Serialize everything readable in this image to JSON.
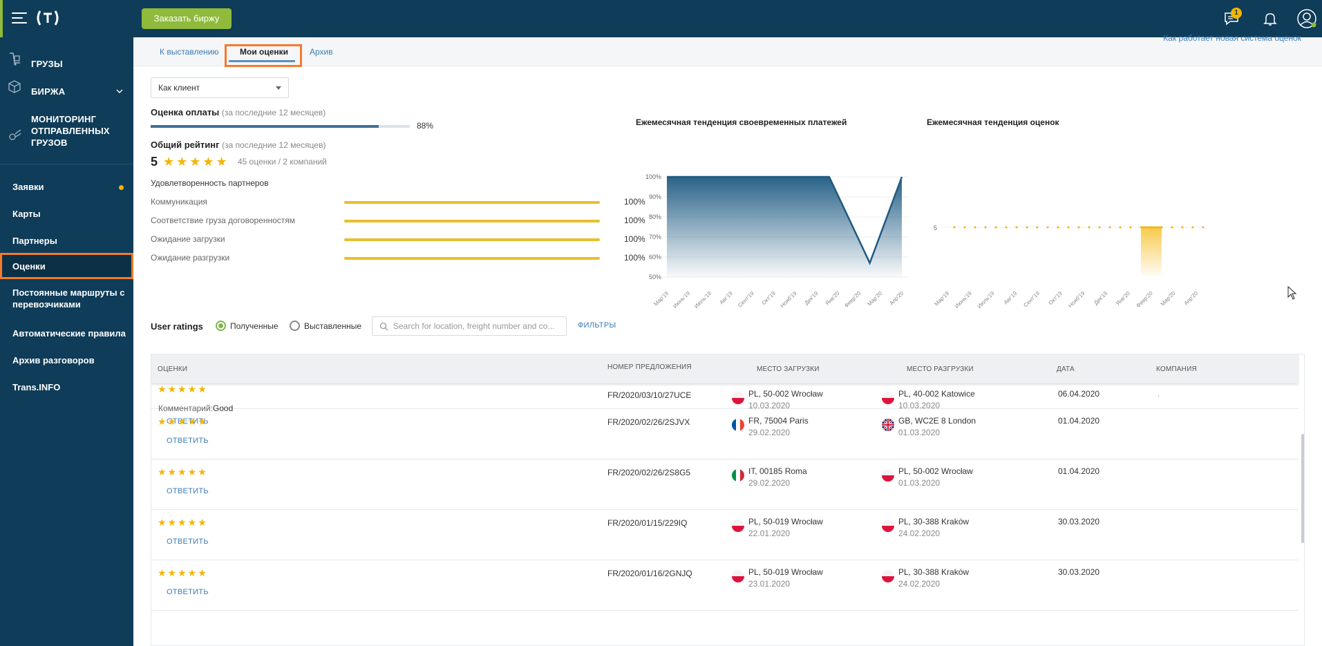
{
  "header": {
    "order_button": "Заказать биржу",
    "chat_badge": "1"
  },
  "sidebar": {
    "main_items": [
      {
        "label": "ГРУЗЫ",
        "icon": "cargo-icon"
      },
      {
        "label": "БИРЖА",
        "icon": "box-icon"
      },
      {
        "label": "МОНИТОРИНГ ОТПРАВЛЕННЫХ ГРУЗОВ",
        "icon": "tracking-icon"
      }
    ],
    "items": [
      {
        "label": "Заявки"
      },
      {
        "label": "Карты"
      },
      {
        "label": "Партнеры"
      },
      {
        "label": "Оценки"
      },
      {
        "label": "Постоянные маршруты с перевозчиками"
      },
      {
        "label": "Автоматические правила"
      },
      {
        "label": "Архив разговоров"
      },
      {
        "label": "Trans.INFO"
      }
    ]
  },
  "tabs": [
    {
      "label": "К выставлению"
    },
    {
      "label": "Мои оценки"
    },
    {
      "label": "Архив"
    }
  ],
  "howto_link": "Как работает новая система оценок",
  "role_select": {
    "value": "Как клиент"
  },
  "payment": {
    "title": "Оценка оплаты",
    "period": "(за последние 12 месяцев)",
    "value": 88,
    "value_label": "88%"
  },
  "overall": {
    "title": "Общий рейтинг",
    "period": "(за последние 12 месяцев)",
    "score": "5",
    "count": "45 оценки / 2 компаний"
  },
  "satisfaction": {
    "title": "Удовлетворенность партнеров",
    "rows": [
      {
        "label": "Коммуникация",
        "value": 100,
        "pct": "100%"
      },
      {
        "label": "Соответствие груза договоренностям",
        "value": 100,
        "pct": "100%"
      },
      {
        "label": "Ожидание загрузки",
        "value": 100,
        "pct": "100%"
      },
      {
        "label": "Ожидание разгрузки",
        "value": 100,
        "pct": "100%"
      }
    ]
  },
  "chart_data": [
    {
      "type": "area",
      "title": "Ежемесячная тенденция своевременных платежей",
      "categories": [
        "Мар'19",
        "Июнь'19",
        "Июль'19",
        "Авг'19",
        "Сент'19",
        "Окт'19",
        "Нояб'19",
        "Дек'19",
        "Янв'20",
        "Февр'20",
        "Мар'20",
        "Апр'20"
      ],
      "y_ticks": [
        "100%",
        "90%",
        "80%",
        "70%",
        "60%",
        "50%"
      ],
      "ylim": [
        50,
        100
      ],
      "x": [
        1,
        8.6,
        10.5,
        12
      ],
      "values": [
        100,
        100,
        57,
        100
      ],
      "color": "#1e5a82"
    },
    {
      "type": "line",
      "title": "Ежемесячная тенденция оценок",
      "categories": [
        "Мар'19",
        "Июнь'19",
        "Июль'19",
        "Авг'19",
        "Сент'19",
        "Окт'19",
        "Нояб'19",
        "Дек'19",
        "Янв'20",
        "Февр'20",
        "Мар'20",
        "Апр'20"
      ],
      "y_ticks": [
        "5"
      ],
      "values": [
        5,
        5,
        5,
        5,
        5,
        5,
        5,
        5,
        5,
        5,
        5,
        5
      ],
      "color": "#f5b400"
    }
  ],
  "ratings_filter": {
    "title": "User ratings",
    "received": "Полученные",
    "given": "Выставленные",
    "search_placeholder": "Search for location, freight number and co...",
    "filters": "ФИЛЬТРЫ"
  },
  "table": {
    "headers": {
      "ratings": "ОЦЕНКИ",
      "offer": "НОМЕР ПРЕДЛОЖЕНИЯ",
      "loading": "МЕСТО ЗАГРУЗКИ",
      "unloading": "МЕСТО РАЗГРУЗКИ",
      "date": "ДАТА",
      "company": "КОМПАНИЯ"
    },
    "reply_label": "ОТВЕТИТЬ",
    "comment_label": "Комментарий:",
    "rows": [
      {
        "stars": 5,
        "comment": "Good",
        "offer": "FR/2020/03/10/27UCE",
        "from": "PL, 50-002 Wrocław",
        "from_date": "10.03.2020",
        "from_flag": "pl",
        "to": "PL, 40-002 Katowice",
        "to_date": "10.03.2020",
        "to_flag": "pl",
        "date": "06.04.2020",
        "company": "."
      },
      {
        "stars": 5,
        "comment": "",
        "offer": "FR/2020/02/26/2SJVX",
        "from": "FR, 75004 Paris",
        "from_date": "29.02.2020",
        "from_flag": "fr",
        "to": "GB, WC2E 8 London",
        "to_date": "01.03.2020",
        "to_flag": "gb",
        "date": "01.04.2020",
        "company": ""
      },
      {
        "stars": 5,
        "comment": "",
        "offer": "FR/2020/02/26/2S8G5",
        "from": "IT, 00185 Roma",
        "from_date": "29.02.2020",
        "from_flag": "it",
        "to": "PL, 50-002 Wrocław",
        "to_date": "01.03.2020",
        "to_flag": "pl",
        "date": "01.04.2020",
        "company": ""
      },
      {
        "stars": 5,
        "comment": "",
        "offer": "FR/2020/01/15/229IQ",
        "from": "PL, 50-019 Wrocław",
        "from_date": "22.01.2020",
        "from_flag": "pl",
        "to": "PL, 30-388 Kraków",
        "to_date": "24.02.2020",
        "to_flag": "pl",
        "date": "30.03.2020",
        "company": ""
      },
      {
        "stars": 5,
        "comment": "",
        "offer": "FR/2020/01/16/2GNJQ",
        "from": "PL, 50-019 Wrocław",
        "from_date": "23.01.2020",
        "from_flag": "pl",
        "to": "PL, 30-388 Kraków",
        "to_date": "24.02.2020",
        "to_flag": "pl",
        "date": "30.03.2020",
        "company": ""
      }
    ]
  }
}
